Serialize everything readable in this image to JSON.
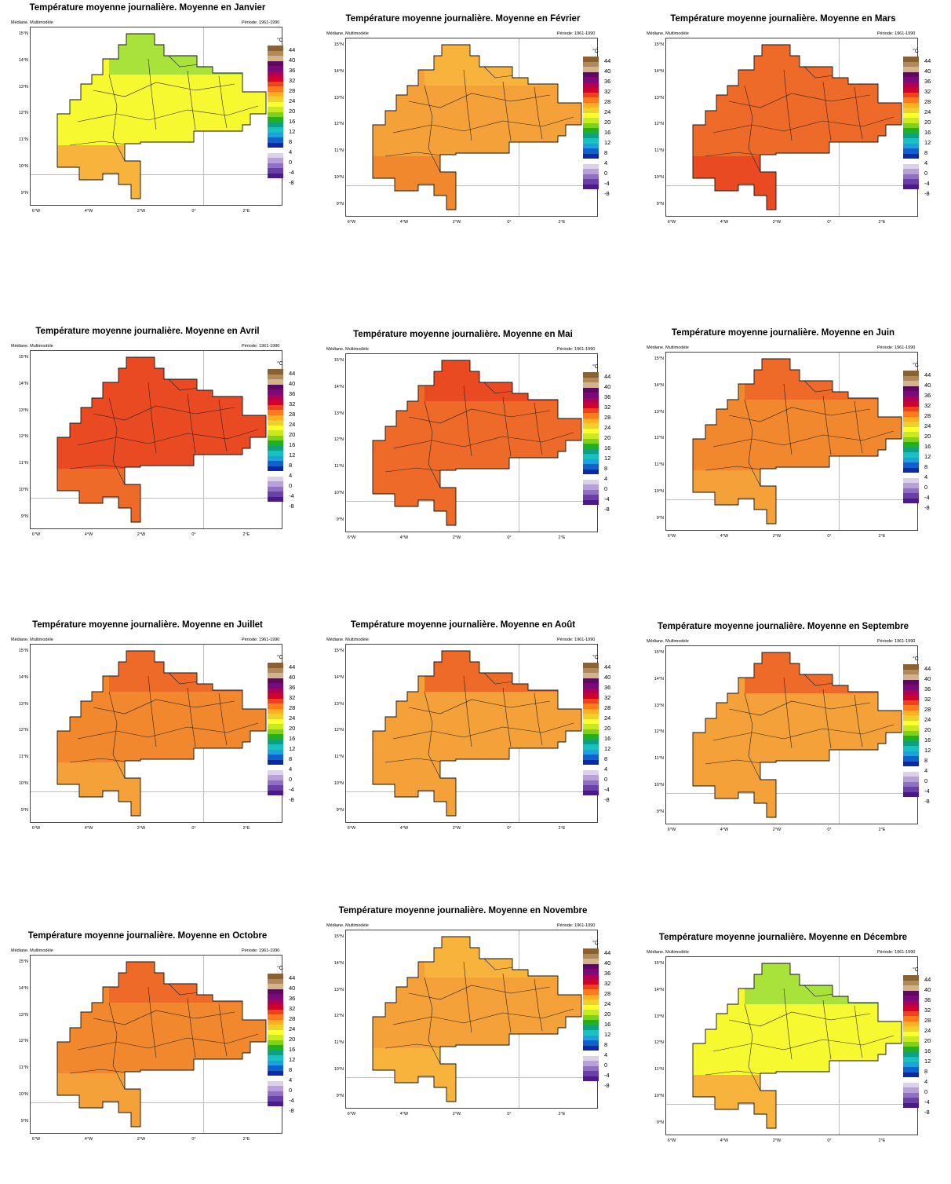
{
  "panel_meta": {
    "left_label": "Médiane. Multimodèle",
    "right_label": "Période: 1961-1990",
    "unit": "°C"
  },
  "axes": {
    "y_ticks": [
      "15°N",
      "14°N",
      "13°N",
      "12°N",
      "11°N",
      "10°N",
      "9°N"
    ],
    "x_ticks": [
      "6°W",
      "4°W",
      "2°W",
      "0°",
      "2°E"
    ]
  },
  "colorbar": {
    "labels": [
      "44",
      "40",
      "36",
      "32",
      "28",
      "24",
      "20",
      "16",
      "12",
      "8",
      "4",
      "0",
      "-4",
      "-8"
    ],
    "colors": [
      "#8a6133",
      "#b08a5a",
      "#d2b48c",
      "#5d0a5d",
      "#7a0a7a",
      "#b00050",
      "#d2002e",
      "#f04020",
      "#ff7a1a",
      "#ffb020",
      "#f0d02a",
      "#ffff30",
      "#c8e820",
      "#7ad21a",
      "#20b020",
      "#10a080",
      "#18c0c0",
      "#20a0e0",
      "#1060d0",
      "#0a2aa0",
      "#ffffff",
      "#dcd0ec",
      "#b8a0d8",
      "#9070c0",
      "#6a40a8",
      "#4a1a8a"
    ],
    "fill_colors": {
      "yellow": "#f7f930",
      "lime": "#a8e23a",
      "light_orange": "#f7b33c",
      "orange": "#f5a13a",
      "dark_orange": "#f1882e",
      "red_orange": "#ee6a28",
      "red": "#ea4a22"
    }
  },
  "months": [
    {
      "title": "Température moyenne journalière. Moyenne en Janvier",
      "dominant": "yellow",
      "north": "lime",
      "south": "light_orange"
    },
    {
      "title": "Température moyenne journalière. Moyenne en Février",
      "dominant": "orange",
      "north": "light_orange",
      "south": "dark_orange"
    },
    {
      "title": "Température moyenne journalière. Moyenne en Mars",
      "dominant": "red_orange",
      "north": "red_orange",
      "south": "red"
    },
    {
      "title": "Température moyenne journalière. Moyenne en Avril",
      "dominant": "red",
      "north": "red",
      "south": "red_orange"
    },
    {
      "title": "Température moyenne journalière. Moyenne en Mai",
      "dominant": "red_orange",
      "north": "red",
      "south": "red_orange"
    },
    {
      "title": "Température moyenne journalière. Moyenne en Juin",
      "dominant": "dark_orange",
      "north": "red_orange",
      "south": "orange"
    },
    {
      "title": "Température moyenne journalière. Moyenne en Juillet",
      "dominant": "dark_orange",
      "north": "red_orange",
      "south": "orange"
    },
    {
      "title": "Température moyenne journalière. Moyenne en Août",
      "dominant": "orange",
      "north": "red_orange",
      "south": "orange"
    },
    {
      "title": "Température moyenne journalière. Moyenne en Septembre",
      "dominant": "orange",
      "north": "red_orange",
      "south": "orange"
    },
    {
      "title": "Température moyenne journalière. Moyenne en Octobre",
      "dominant": "dark_orange",
      "north": "red_orange",
      "south": "orange"
    },
    {
      "title": "Température moyenne journalière. Moyenne en Novembre",
      "dominant": "orange",
      "north": "light_orange",
      "south": "light_orange"
    },
    {
      "title": "Température moyenne journalière. Moyenne en Décembre",
      "dominant": "yellow",
      "north": "lime",
      "south": "light_orange"
    }
  ]
}
